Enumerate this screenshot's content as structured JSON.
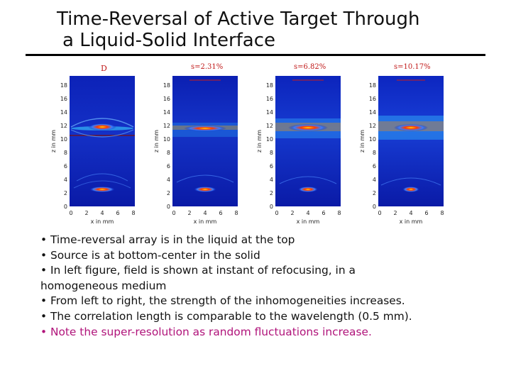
{
  "slide": {
    "title_line1": "Time-Reversal of Active Target Through",
    "title_line2": "a Liquid-Solid Interface"
  },
  "figure": {
    "panels": [
      {
        "label": "D",
        "ylabel": "z in mm",
        "xlabel": "x in mm",
        "yticks": [
          "18",
          "16",
          "14",
          "12",
          "10",
          "8",
          "6",
          "4",
          "2",
          "0"
        ],
        "xticks": [
          "0",
          "2",
          "4",
          "6",
          "8"
        ]
      },
      {
        "label": "s=2.31%",
        "ylabel": "z in mm",
        "xlabel": "x in mm",
        "yticks": [
          "18",
          "16",
          "14",
          "12",
          "10",
          "8",
          "6",
          "4",
          "2",
          "0"
        ],
        "xticks": [
          "0",
          "2",
          "4",
          "6",
          "8"
        ]
      },
      {
        "label": "s=6.82%",
        "ylabel": "z in mm",
        "xlabel": "x in mm",
        "yticks": [
          "18",
          "16",
          "14",
          "12",
          "10",
          "8",
          "6",
          "4",
          "2",
          "0"
        ],
        "xticks": [
          "0",
          "2",
          "4",
          "6",
          "8"
        ]
      },
      {
        "label": "s=10.17%",
        "ylabel": "z in mm",
        "xlabel": "x in mm",
        "yticks": [
          "18",
          "16",
          "14",
          "12",
          "10",
          "8",
          "6",
          "4",
          "2",
          "0"
        ],
        "xticks": [
          "0",
          "2",
          "4",
          "6",
          "8"
        ]
      }
    ],
    "colors": {
      "field_background": "#0a1fb4",
      "field_dark": "#001070",
      "focus": "#ff2a00",
      "interface": "#c81e1e"
    }
  },
  "bullets": [
    "• Time-reversal array is in the liquid at the top",
    "• Source is at bottom-center in the solid",
    "• In left figure, field is shown at instant of refocusing, in a",
    "homogeneous medium",
    "• From left to right, the strength of the inhomogeneities increases.",
    "• The correlation length is comparable to the wavelength (0.5 mm).",
    "• Note the super-resolution as random fluctuations increase."
  ]
}
